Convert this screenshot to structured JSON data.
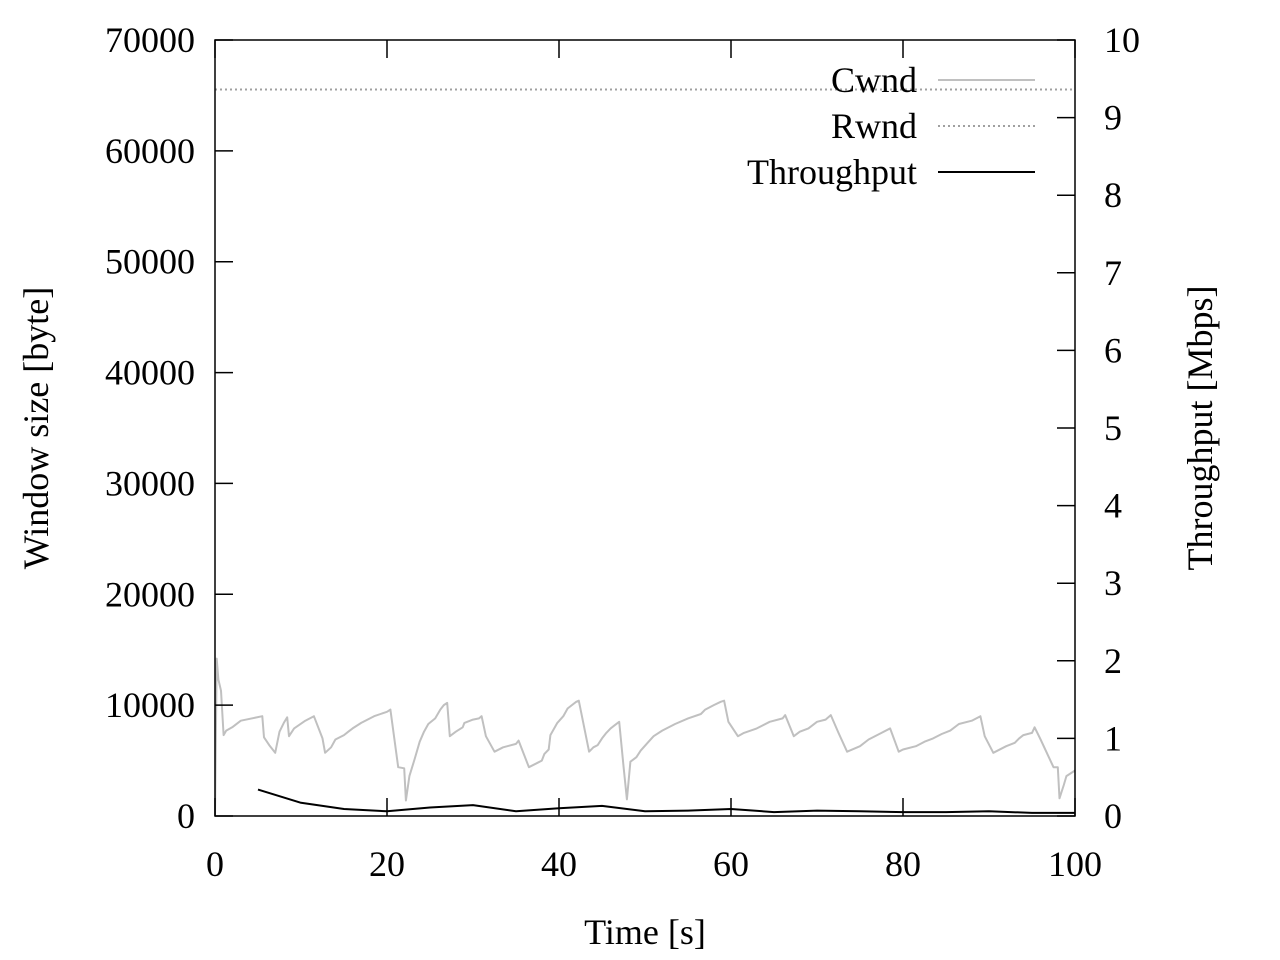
{
  "chart_data": {
    "type": "line",
    "xlabel": "Time [s]",
    "ylabel": "Window size [byte]",
    "y2label": "Throughput [Mbps]",
    "xlim": [
      0,
      100
    ],
    "ylim": [
      0,
      70000
    ],
    "y2lim": [
      0,
      10
    ],
    "xticks": [
      0,
      20,
      40,
      60,
      80,
      100
    ],
    "yticks": [
      0,
      10000,
      20000,
      30000,
      40000,
      50000,
      60000,
      70000
    ],
    "y2ticks": [
      0,
      1,
      2,
      3,
      4,
      5,
      6,
      7,
      8,
      9,
      10
    ],
    "grid": false,
    "legend_position": "top-right",
    "series": [
      {
        "name": "Cwnd",
        "axis": "left",
        "style": "solid",
        "color": "#c0c0c0",
        "points": [
          [
            0,
            0
          ],
          [
            0.2,
            14200
          ],
          [
            0.4,
            12300
          ],
          [
            0.7,
            11300
          ],
          [
            1.0,
            7300
          ],
          [
            1.3,
            7700
          ],
          [
            2.0,
            8000
          ],
          [
            3.0,
            8600
          ],
          [
            5.5,
            9000
          ],
          [
            5.7,
            7100
          ],
          [
            6.3,
            6400
          ],
          [
            7.0,
            5700
          ],
          [
            7.5,
            7600
          ],
          [
            8.0,
            8400
          ],
          [
            8.4,
            8900
          ],
          [
            8.6,
            7200
          ],
          [
            9.2,
            7900
          ],
          [
            10.5,
            8600
          ],
          [
            11.5,
            9000
          ],
          [
            12.5,
            7000
          ],
          [
            12.8,
            5700
          ],
          [
            13.5,
            6200
          ],
          [
            14.0,
            6900
          ],
          [
            15.0,
            7300
          ],
          [
            15.5,
            7600
          ],
          [
            16.0,
            7900
          ],
          [
            17.0,
            8400
          ],
          [
            18.5,
            9000
          ],
          [
            20.0,
            9400
          ],
          [
            20.4,
            9600
          ],
          [
            21.3,
            4400
          ],
          [
            22.0,
            4300
          ],
          [
            22.2,
            1400
          ],
          [
            22.6,
            3600
          ],
          [
            23.2,
            5100
          ],
          [
            23.8,
            6700
          ],
          [
            24.3,
            7600
          ],
          [
            24.8,
            8300
          ],
          [
            25.6,
            8800
          ],
          [
            26.2,
            9600
          ],
          [
            26.6,
            10000
          ],
          [
            27.0,
            10200
          ],
          [
            27.3,
            7200
          ],
          [
            28.0,
            7600
          ],
          [
            28.8,
            8000
          ],
          [
            29.0,
            8400
          ],
          [
            30.0,
            8700
          ],
          [
            30.7,
            8800
          ],
          [
            31.0,
            9000
          ],
          [
            31.5,
            7200
          ],
          [
            32.5,
            5800
          ],
          [
            33.5,
            6200
          ],
          [
            35.0,
            6500
          ],
          [
            35.3,
            6800
          ],
          [
            36.5,
            4400
          ],
          [
            37.5,
            4800
          ],
          [
            38.0,
            5000
          ],
          [
            38.3,
            5600
          ],
          [
            38.8,
            6000
          ],
          [
            39.0,
            7300
          ],
          [
            39.8,
            8400
          ],
          [
            40.5,
            9000
          ],
          [
            41.0,
            9700
          ],
          [
            41.5,
            10000
          ],
          [
            42.0,
            10300
          ],
          [
            42.3,
            10400
          ],
          [
            43.5,
            5800
          ],
          [
            44.0,
            6200
          ],
          [
            44.5,
            6400
          ],
          [
            45.0,
            7000
          ],
          [
            45.5,
            7500
          ],
          [
            46.0,
            7900
          ],
          [
            46.5,
            8200
          ],
          [
            47.0,
            8500
          ],
          [
            47.5,
            4500
          ],
          [
            47.9,
            1500
          ],
          [
            48.3,
            4900
          ],
          [
            49.0,
            5300
          ],
          [
            49.5,
            5900
          ],
          [
            50.3,
            6600
          ],
          [
            51.0,
            7200
          ],
          [
            52.0,
            7700
          ],
          [
            53.5,
            8300
          ],
          [
            55.0,
            8800
          ],
          [
            56.5,
            9200
          ],
          [
            57.0,
            9600
          ],
          [
            58.0,
            10000
          ],
          [
            58.8,
            10300
          ],
          [
            59.2,
            10400
          ],
          [
            59.7,
            8500
          ],
          [
            60.8,
            7200
          ],
          [
            61.5,
            7500
          ],
          [
            63.0,
            7900
          ],
          [
            64.5,
            8500
          ],
          [
            66.0,
            8800
          ],
          [
            66.3,
            9100
          ],
          [
            67.3,
            7200
          ],
          [
            68.0,
            7600
          ],
          [
            69.0,
            7900
          ],
          [
            70.0,
            8500
          ],
          [
            71.0,
            8700
          ],
          [
            71.6,
            9100
          ],
          [
            72.5,
            7500
          ],
          [
            73.5,
            5800
          ],
          [
            75.0,
            6300
          ],
          [
            76.0,
            6900
          ],
          [
            77.5,
            7500
          ],
          [
            78.5,
            7900
          ],
          [
            79.5,
            5800
          ],
          [
            80.0,
            6000
          ],
          [
            81.5,
            6300
          ],
          [
            82.5,
            6700
          ],
          [
            83.5,
            7000
          ],
          [
            84.5,
            7400
          ],
          [
            85.5,
            7700
          ],
          [
            86.5,
            8300
          ],
          [
            88.0,
            8600
          ],
          [
            89.0,
            9000
          ],
          [
            89.5,
            7200
          ],
          [
            90.5,
            5700
          ],
          [
            92.0,
            6300
          ],
          [
            93.0,
            6600
          ],
          [
            93.5,
            7000
          ],
          [
            94.0,
            7300
          ],
          [
            95.0,
            7500
          ],
          [
            95.3,
            8000
          ],
          [
            96.0,
            6900
          ],
          [
            97.5,
            4400
          ],
          [
            98.0,
            4400
          ],
          [
            98.2,
            1600
          ],
          [
            98.7,
            2800
          ],
          [
            99.0,
            3600
          ],
          [
            100.0,
            4100
          ],
          [
            101.0,
            4300
          ],
          [
            102.0,
            4500
          ],
          [
            103.0,
            5000
          ],
          [
            104.0,
            5300
          ]
        ]
      },
      {
        "name": "Rwnd",
        "axis": "left",
        "style": "dotted",
        "color": "#a0a0a0",
        "points": [
          [
            0,
            65535
          ],
          [
            104,
            65535
          ]
        ]
      },
      {
        "name": "Throughput",
        "axis": "right",
        "style": "solid",
        "color": "#000000",
        "points": [
          [
            5,
            0.34
          ],
          [
            10,
            0.17
          ],
          [
            15,
            0.09
          ],
          [
            20,
            0.06
          ],
          [
            25,
            0.11
          ],
          [
            30,
            0.14
          ],
          [
            35,
            0.06
          ],
          [
            40,
            0.1
          ],
          [
            45,
            0.13
          ],
          [
            50,
            0.06
          ],
          [
            55,
            0.07
          ],
          [
            60,
            0.09
          ],
          [
            65,
            0.05
          ],
          [
            70,
            0.07
          ],
          [
            75,
            0.06
          ],
          [
            80,
            0.05
          ],
          [
            85,
            0.05
          ],
          [
            90,
            0.06
          ],
          [
            95,
            0.04
          ],
          [
            100,
            0.04
          ],
          [
            105,
            0.04
          ]
        ]
      }
    ]
  }
}
